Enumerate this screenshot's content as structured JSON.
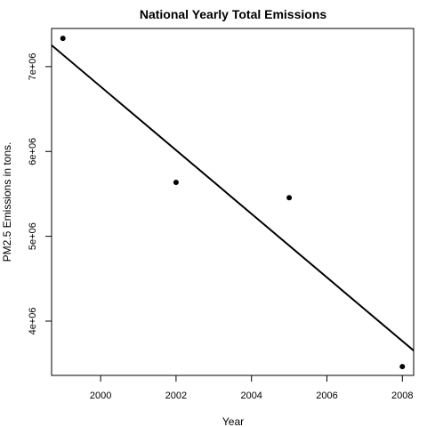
{
  "chart_data": {
    "type": "scatter",
    "title": "National Yearly Total Emissions",
    "xlabel": "Year",
    "ylabel": "PM2.5 Emissions in tons.",
    "xlim": [
      1998.7,
      2008.3
    ],
    "ylim": [
      3360000,
      7450000
    ],
    "x_ticks": [
      2000,
      2002,
      2004,
      2006,
      2008
    ],
    "x_tick_labels": [
      "2000",
      "2002",
      "2004",
      "2006",
      "2008"
    ],
    "y_ticks": [
      4000000,
      5000000,
      6000000,
      7000000
    ],
    "y_tick_labels": [
      "4e+06",
      "5e+06",
      "6e+06",
      "7e+06"
    ],
    "points": [
      {
        "x": 1999,
        "y": 7332967
      },
      {
        "x": 2002,
        "y": 5635780
      },
      {
        "x": 2005,
        "y": 5454703
      },
      {
        "x": 2008,
        "y": 3464206
      }
    ],
    "regression_line": {
      "intercept_at_1999": 7140000,
      "slope_per_year": -375000
    },
    "grid": false,
    "legend": "none",
    "colors": {
      "points": "#000000",
      "line": "#000000",
      "axes": "#000000"
    }
  }
}
